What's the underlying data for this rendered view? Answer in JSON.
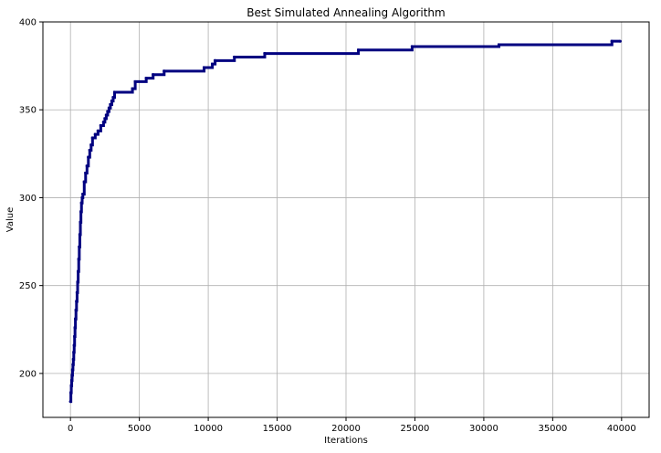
{
  "chart_data": {
    "type": "line",
    "title": "Best Simulated Annealing Algorithm",
    "xlabel": "Iterations",
    "ylabel": "Value",
    "xlim": [
      -2000,
      42000
    ],
    "ylim": [
      175,
      400
    ],
    "xticks": [
      0,
      5000,
      10000,
      15000,
      20000,
      25000,
      30000,
      35000,
      40000
    ],
    "yticks": [
      200,
      250,
      300,
      350,
      400
    ],
    "grid": true,
    "colors": {
      "line": "#000080",
      "grid": "#b0b0b0",
      "axis": "#000000"
    },
    "series": [
      {
        "step": "post",
        "x": [
          0,
          30,
          60,
          90,
          120,
          150,
          180,
          210,
          240,
          270,
          300,
          330,
          360,
          400,
          440,
          480,
          520,
          560,
          600,
          640,
          680,
          720,
          760,
          800,
          850,
          900,
          1000,
          1100,
          1200,
          1300,
          1400,
          1500,
          1600,
          1800,
          2000,
          2200,
          2400,
          2500,
          2600,
          2700,
          2800,
          2900,
          3000,
          3100,
          3200,
          4500,
          4700,
          5500,
          6000,
          6800,
          9700,
          10300,
          10500,
          11900,
          14100,
          20900,
          24800,
          31100,
          39300,
          39900
        ],
        "y": [
          184,
          189,
          193,
          196,
          199,
          202,
          205,
          208,
          212,
          216,
          221,
          226,
          231,
          236,
          241,
          246,
          252,
          258,
          265,
          272,
          279,
          286,
          292,
          297,
          300,
          302,
          309,
          314,
          318,
          323,
          327,
          330,
          334,
          336,
          338,
          341,
          343,
          345,
          347,
          349,
          351,
          353,
          355,
          357,
          360,
          362,
          366,
          368,
          370,
          372,
          374,
          376,
          378,
          380,
          382,
          384,
          386,
          387,
          389,
          389
        ]
      }
    ]
  }
}
